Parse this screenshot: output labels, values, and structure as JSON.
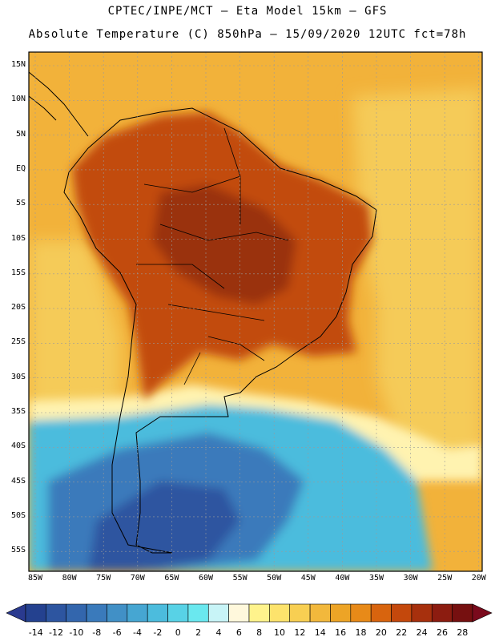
{
  "header": {
    "line1": "CPTEC/INPE/MCT –  Eta Model 15km – GFS",
    "line2": "Absolute Temperature (C) 850hPa – 15/09/2020 12UTC fct=78h"
  },
  "axes": {
    "lat_labels": [
      "15N",
      "10N",
      "5N",
      "EQ",
      "5S",
      "10S",
      "15S",
      "20S",
      "25S",
      "30S",
      "35S",
      "40S",
      "45S",
      "50S",
      "55S"
    ],
    "lon_labels": [
      "85W",
      "80W",
      "75W",
      "70W",
      "65W",
      "60W",
      "55W",
      "50W",
      "45W",
      "40W",
      "35W",
      "30W",
      "25W",
      "20W"
    ],
    "lat_values": [
      15,
      10,
      5,
      0,
      -5,
      -10,
      -15,
      -20,
      -25,
      -30,
      -35,
      -40,
      -45,
      -50,
      -55
    ],
    "lon_values": [
      -85,
      -80,
      -75,
      -70,
      -65,
      -60,
      -55,
      -50,
      -45,
      -40,
      -35,
      -30,
      -25,
      -20
    ]
  },
  "colorbar": {
    "labels": [
      "-14",
      "-12",
      "-10",
      "-8",
      "-6",
      "-4",
      "-2",
      "0",
      "2",
      "4",
      "6",
      "8",
      "10",
      "12",
      "14",
      "16",
      "18",
      "20",
      "22",
      "24",
      "26",
      "28"
    ],
    "low_color": "#2a3a8f",
    "high_color": "#7a0a1c",
    "colors": [
      "#24418f",
      "#2d55a0",
      "#3366ad",
      "#3a7abb",
      "#4190c6",
      "#46a6d2",
      "#4cbcdd",
      "#58d2e6",
      "#6ae8ef",
      "#c8f4f7",
      "#fff8dc",
      "#fff38c",
      "#fde36c",
      "#f8cf52",
      "#f2b83c",
      "#eda426",
      "#e88a18",
      "#d8640e",
      "#c4480c",
      "#a7300d",
      "#8c1c10",
      "#761010"
    ]
  },
  "palette": {
    "ocean_warm": "#f2b23a",
    "ocean_mild": "#f5cb58",
    "land_hot": "#c24b10",
    "land_very_hot": "#9a3010",
    "cold_sea": "#4cbcdd",
    "very_cold_sea": "#3a7abb",
    "deep_cold": "#2d55a0",
    "frame": "#000000",
    "grid": "#9a9a9a"
  }
}
